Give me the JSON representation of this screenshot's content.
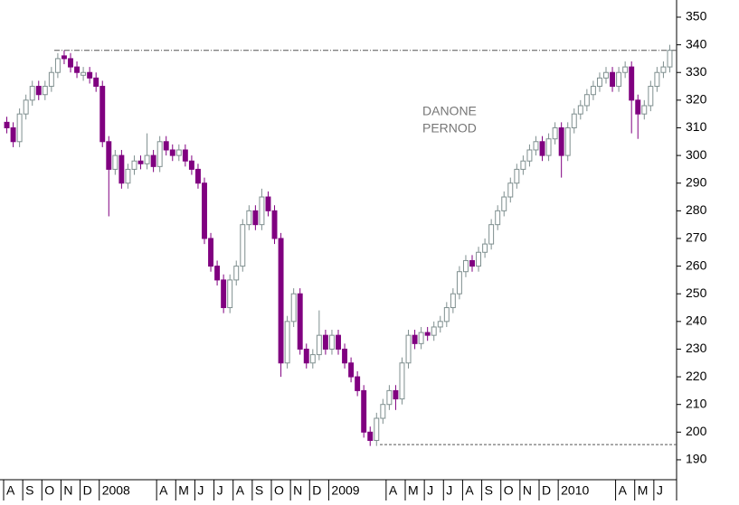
{
  "chart_data": {
    "type": "candlestick",
    "annotations": [
      "DANONE",
      "PERNOD"
    ],
    "categories": [
      "A",
      null,
      null,
      "S",
      null,
      null,
      "O",
      null,
      null,
      "N",
      null,
      null,
      "D",
      null,
      null,
      "2008",
      null,
      null,
      null,
      null,
      null,
      null,
      null,
      null,
      "A",
      null,
      null,
      "M",
      null,
      null,
      "J",
      null,
      null,
      "J",
      null,
      null,
      "A",
      null,
      null,
      "S",
      null,
      null,
      "O",
      null,
      null,
      "N",
      null,
      null,
      "D",
      null,
      null,
      "2009",
      null,
      null,
      null,
      null,
      null,
      null,
      null,
      null,
      "A",
      null,
      null,
      "M",
      null,
      null,
      "J",
      null,
      null,
      "J",
      null,
      null,
      "A",
      null,
      null,
      "S",
      null,
      null,
      "O",
      null,
      null,
      "N",
      null,
      null,
      "D",
      null,
      null,
      "2010",
      null,
      null,
      null,
      null,
      null,
      null,
      null,
      null,
      "A",
      null,
      null,
      "M",
      null,
      null,
      "J",
      null,
      null
    ],
    "candles": [
      [
        312,
        314,
        308,
        310
      ],
      [
        310,
        312,
        303,
        305
      ],
      [
        305,
        317,
        303,
        315
      ],
      [
        315,
        322,
        313,
        320
      ],
      [
        320,
        327,
        318,
        325
      ],
      [
        325,
        327,
        320,
        322
      ],
      [
        322,
        327,
        320,
        325
      ],
      [
        325,
        332,
        323,
        330
      ],
      [
        330,
        337,
        328,
        335
      ],
      [
        336,
        338,
        333,
        335
      ],
      [
        335,
        337,
        330,
        332
      ],
      [
        332,
        334,
        328,
        330
      ],
      [
        329,
        332,
        327,
        330
      ],
      [
        330,
        332,
        326,
        328
      ],
      [
        328,
        330,
        323,
        325
      ],
      [
        325,
        327,
        303,
        305
      ],
      [
        305,
        307,
        278,
        295
      ],
      [
        295,
        302,
        293,
        300
      ],
      [
        300,
        302,
        288,
        290
      ],
      [
        290,
        297,
        288,
        295
      ],
      [
        295,
        300,
        293,
        298
      ],
      [
        298,
        300,
        295,
        297
      ],
      [
        297,
        308,
        295,
        300
      ],
      [
        300,
        302,
        294,
        296
      ],
      [
        296,
        307,
        294,
        305
      ],
      [
        305,
        307,
        300,
        302
      ],
      [
        302,
        304,
        298,
        300
      ],
      [
        300,
        304,
        298,
        302
      ],
      [
        302,
        304,
        296,
        298
      ],
      [
        298,
        300,
        293,
        295
      ],
      [
        295,
        297,
        288,
        290
      ],
      [
        290,
        292,
        268,
        270
      ],
      [
        270,
        272,
        258,
        260
      ],
      [
        260,
        262,
        253,
        255
      ],
      [
        255,
        257,
        243,
        245
      ],
      [
        245,
        257,
        243,
        255
      ],
      [
        255,
        262,
        253,
        260
      ],
      [
        260,
        277,
        258,
        275
      ],
      [
        275,
        282,
        273,
        280
      ],
      [
        280,
        282,
        273,
        275
      ],
      [
        275,
        288,
        273,
        285
      ],
      [
        285,
        287,
        278,
        280
      ],
      [
        280,
        282,
        268,
        270
      ],
      [
        270,
        272,
        220,
        225
      ],
      [
        225,
        242,
        223,
        240
      ],
      [
        240,
        252,
        238,
        250
      ],
      [
        250,
        252,
        228,
        230
      ],
      [
        230,
        232,
        223,
        225
      ],
      [
        225,
        230,
        223,
        228
      ],
      [
        228,
        244,
        226,
        235
      ],
      [
        235,
        237,
        228,
        230
      ],
      [
        230,
        237,
        228,
        235
      ],
      [
        235,
        237,
        228,
        230
      ],
      [
        230,
        232,
        223,
        225
      ],
      [
        225,
        227,
        218,
        220
      ],
      [
        220,
        222,
        213,
        215
      ],
      [
        215,
        217,
        198,
        200
      ],
      [
        200,
        202,
        195,
        197
      ],
      [
        197,
        207,
        195,
        205
      ],
      [
        205,
        212,
        203,
        210
      ],
      [
        210,
        217,
        208,
        215
      ],
      [
        215,
        217,
        208,
        212
      ],
      [
        212,
        227,
        210,
        225
      ],
      [
        225,
        237,
        223,
        235
      ],
      [
        235,
        237,
        230,
        232
      ],
      [
        232,
        238,
        230,
        236
      ],
      [
        236,
        238,
        233,
        235
      ],
      [
        235,
        240,
        233,
        238
      ],
      [
        238,
        242,
        236,
        240
      ],
      [
        240,
        247,
        238,
        245
      ],
      [
        245,
        252,
        243,
        250
      ],
      [
        250,
        260,
        248,
        258
      ],
      [
        258,
        264,
        256,
        262
      ],
      [
        262,
        264,
        258,
        260
      ],
      [
        260,
        267,
        258,
        265
      ],
      [
        265,
        270,
        263,
        268
      ],
      [
        268,
        277,
        266,
        275
      ],
      [
        275,
        282,
        273,
        280
      ],
      [
        280,
        287,
        278,
        285
      ],
      [
        285,
        292,
        283,
        290
      ],
      [
        290,
        297,
        288,
        295
      ],
      [
        295,
        300,
        293,
        298
      ],
      [
        298,
        304,
        296,
        302
      ],
      [
        302,
        307,
        300,
        305
      ],
      [
        305,
        307,
        298,
        300
      ],
      [
        300,
        308,
        298,
        306
      ],
      [
        306,
        312,
        304,
        310
      ],
      [
        310,
        312,
        292,
        300
      ],
      [
        300,
        312,
        298,
        310
      ],
      [
        310,
        317,
        308,
        315
      ],
      [
        315,
        320,
        313,
        318
      ],
      [
        318,
        324,
        316,
        322
      ],
      [
        322,
        327,
        320,
        325
      ],
      [
        325,
        330,
        323,
        328
      ],
      [
        328,
        332,
        326,
        330
      ],
      [
        330,
        332,
        323,
        325
      ],
      [
        325,
        332,
        323,
        330
      ],
      [
        330,
        334,
        328,
        332
      ],
      [
        332,
        334,
        308,
        320
      ],
      [
        320,
        322,
        306,
        315
      ],
      [
        315,
        320,
        313,
        318
      ],
      [
        318,
        327,
        316,
        325
      ],
      [
        325,
        332,
        323,
        330
      ],
      [
        330,
        334,
        328,
        332
      ],
      [
        332,
        340,
        330,
        338
      ]
    ],
    "up_color": "#7f8f8f",
    "down_color": "#800080",
    "reference_lines": [
      338,
      195.5
    ],
    "ylim": [
      182.8,
      356.2
    ],
    "yticks": [
      190,
      200,
      210,
      220,
      230,
      240,
      250,
      260,
      270,
      280,
      290,
      300,
      310,
      320,
      330,
      340,
      350
    ]
  }
}
